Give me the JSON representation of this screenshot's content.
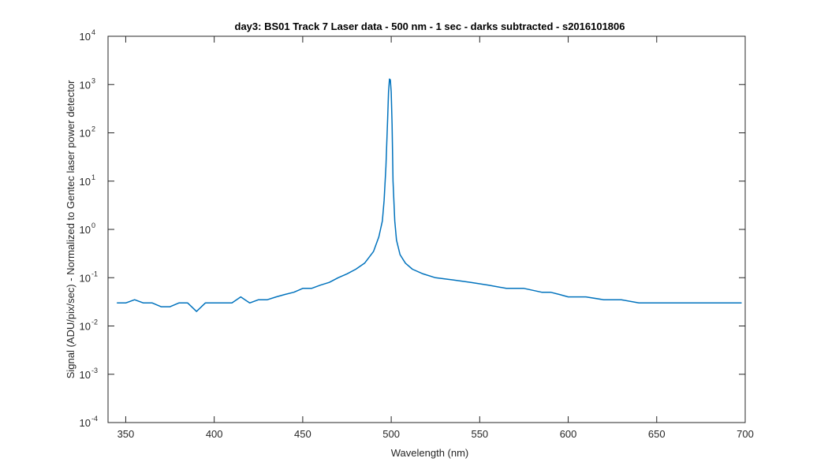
{
  "chart_data": {
    "type": "line",
    "title": "day3: BS01  Track 7 Laser data - 500 nm - 1 sec - darks subtracted - s2016101806",
    "xlabel": "Wavelength (nm)",
    "ylabel": "Signal (ADU/pix/sec) - Normalized to Gentec laser power detector",
    "xlim": [
      340,
      700
    ],
    "ylim": [
      0.0001,
      10000
    ],
    "yscale": "log",
    "x_ticks": [
      350,
      400,
      450,
      500,
      550,
      600,
      650,
      700
    ],
    "x_tick_labels": [
      "350",
      "400",
      "450",
      "500",
      "550",
      "600",
      "650",
      "700"
    ],
    "y_ticks": [
      0.0001,
      0.001,
      0.01,
      0.1,
      1,
      10,
      100,
      1000,
      10000
    ],
    "y_tick_labels": [
      {
        "base": "10",
        "exp": "-4"
      },
      {
        "base": "10",
        "exp": "-3"
      },
      {
        "base": "10",
        "exp": "-2"
      },
      {
        "base": "10",
        "exp": "-1"
      },
      {
        "base": "10",
        "exp": "0"
      },
      {
        "base": "10",
        "exp": "1"
      },
      {
        "base": "10",
        "exp": "2"
      },
      {
        "base": "10",
        "exp": "3"
      },
      {
        "base": "10",
        "exp": "4"
      }
    ],
    "grid": false,
    "series": [
      {
        "color": "#0072bd",
        "x": [
          345,
          350,
          355,
          360,
          365,
          370,
          375,
          380,
          385,
          390,
          395,
          400,
          405,
          410,
          415,
          420,
          425,
          430,
          435,
          440,
          445,
          450,
          455,
          460,
          465,
          470,
          475,
          480,
          485,
          490,
          493,
          495,
          496,
          497,
          498,
          498.5,
          499,
          499.5,
          500,
          500.5,
          501,
          502,
          503,
          505,
          508,
          512,
          518,
          525,
          535,
          545,
          555,
          565,
          575,
          585,
          590,
          595,
          600,
          610,
          620,
          630,
          640,
          650,
          660,
          670,
          680,
          690,
          698
        ],
        "y": [
          0.03,
          0.03,
          0.035,
          0.03,
          0.03,
          0.025,
          0.025,
          0.03,
          0.03,
          0.02,
          0.03,
          0.03,
          0.03,
          0.03,
          0.04,
          0.03,
          0.035,
          0.035,
          0.04,
          0.045,
          0.05,
          0.06,
          0.06,
          0.07,
          0.08,
          0.1,
          0.12,
          0.15,
          0.2,
          0.35,
          0.7,
          1.5,
          4,
          20,
          200,
          700,
          1300,
          1250,
          700,
          150,
          10,
          1.5,
          0.6,
          0.3,
          0.2,
          0.15,
          0.12,
          0.1,
          0.09,
          0.08,
          0.07,
          0.06,
          0.06,
          0.05,
          0.05,
          0.045,
          0.04,
          0.04,
          0.035,
          0.035,
          0.03,
          0.03,
          0.03,
          0.03,
          0.03,
          0.03,
          0.03
        ]
      }
    ]
  }
}
